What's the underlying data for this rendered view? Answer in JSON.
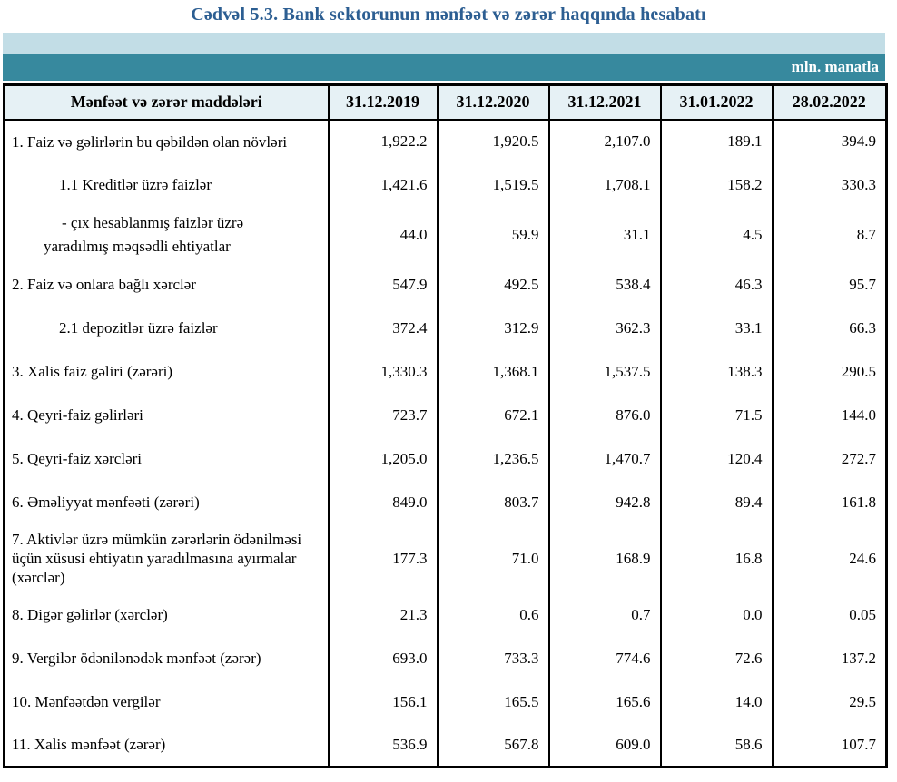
{
  "title": "Cədvəl 5.3. Bank sektorunun mənfəət və zərər haqqında hesabatı",
  "unit_label": "mln. manatla",
  "colors": {
    "title_blue": "#2c5e92",
    "band_light": "#c2dde6",
    "band_teal": "#37899e",
    "header_bg": "#e6f1f5",
    "border": "#000000"
  },
  "table": {
    "header": [
      "Mənfəət və zərər maddələri",
      "31.12.2019",
      "31.12.2020",
      "31.12.2021",
      "31.01.2022",
      "28.02.2022"
    ],
    "rows": [
      {
        "label": "1. Faiz və gəlirlərin bu qəbildən olan növləri",
        "indent": 0,
        "values": [
          "1,922.2",
          "1,920.5",
          "2,107.0",
          "189.1",
          "394.9"
        ]
      },
      {
        "label": "1.1 Kreditlər üzrə faizlər",
        "indent": 1,
        "values": [
          "1,421.6",
          "1,519.5",
          "1,708.1",
          "158.2",
          "330.3"
        ]
      },
      {
        "label": "-  çıx hesablanmış faizlər üzrə yaradılmış məqsədli ehtiyatlar",
        "indent": 2,
        "values": [
          "44.0",
          "59.9",
          "31.1",
          "4.5",
          "8.7"
        ]
      },
      {
        "label": "2. Faiz və onlara bağlı xərclər",
        "indent": 0,
        "values": [
          "547.9",
          "492.5",
          "538.4",
          "46.3",
          "95.7"
        ]
      },
      {
        "label": "2.1 depozitlər üzrə faizlər",
        "indent": 1,
        "values": [
          "372.4",
          "312.9",
          "362.3",
          "33.1",
          "66.3"
        ]
      },
      {
        "label": "3. Xalis faiz gəliri (zərəri)",
        "indent": 0,
        "values": [
          "1,330.3",
          "1,368.1",
          "1,537.5",
          "138.3",
          "290.5"
        ]
      },
      {
        "label": "4. Qeyri-faiz gəlirləri",
        "indent": 0,
        "values": [
          "723.7",
          "672.1",
          "876.0",
          "71.5",
          "144.0"
        ]
      },
      {
        "label": "5. Qeyri-faiz xərcləri",
        "indent": 0,
        "values": [
          "1,205.0",
          "1,236.5",
          "1,470.7",
          "120.4",
          "272.7"
        ]
      },
      {
        "label": "6. Əməliyyat mənfəəti (zərəri)",
        "indent": 0,
        "values": [
          "849.0",
          "803.7",
          "942.8",
          "89.4",
          "161.8"
        ]
      },
      {
        "label": "7. Aktivlər üzrə mümkün zərərlərin ödənilməsi üçün xüsusi ehtiyatın yaradılmasına ayırmalar (xərclər)",
        "indent": 0,
        "values": [
          "177.3",
          "71.0",
          "168.9",
          "16.8",
          "24.6"
        ]
      },
      {
        "label": "8. Digər gəlirlər (xərclər)",
        "indent": 0,
        "values": [
          "21.3",
          "0.6",
          "0.7",
          "0.0",
          "0.05"
        ]
      },
      {
        "label": "9. Vergilər ödənilənədək mənfəət (zərər)",
        "indent": 0,
        "values": [
          "693.0",
          "733.3",
          "774.6",
          "72.6",
          "137.2"
        ]
      },
      {
        "label": "10. Mənfəətdən vergilər",
        "indent": 0,
        "values": [
          "156.1",
          "165.5",
          "165.6",
          "14.0",
          "29.5"
        ]
      },
      {
        "label": "11. Xalis mənfəət (zərər)",
        "indent": 0,
        "values": [
          "536.9",
          "567.8",
          "609.0",
          "58.6",
          "107.7"
        ]
      }
    ]
  }
}
